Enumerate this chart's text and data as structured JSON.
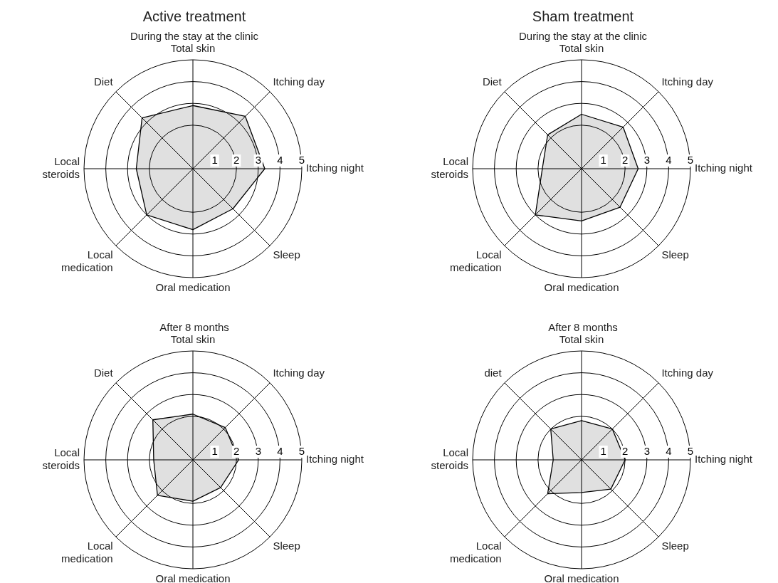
{
  "chart_data": [
    {
      "type": "radar",
      "title": "Active treatment",
      "subtitle": "During the stay at the clinic",
      "categories": [
        "Total skin",
        "Itching day",
        "Itching night",
        "Sleep",
        "Oral medication",
        "Local medication",
        "Local steroids",
        "Diet"
      ],
      "series": [
        {
          "color": "#000000",
          "values": [
            2.9,
            3.4,
            3.3,
            2.6,
            2.8,
            3.0,
            2.6,
            3.3
          ]
        }
      ],
      "ylim": [
        0,
        5
      ],
      "yticks": [
        1,
        2,
        3,
        4,
        5
      ],
      "grid": true,
      "legend": false
    },
    {
      "type": "radar",
      "title": "Sham treatment",
      "subtitle": "During the stay at the clinic",
      "categories": [
        "Total skin",
        "Itching day",
        "Itching night",
        "Sleep",
        "Oral medication",
        "Local medication",
        "Local steroids",
        "Diet"
      ],
      "series": [
        {
          "color": "#000000",
          "values": [
            2.5,
            2.7,
            2.6,
            2.5,
            2.4,
            3.0,
            1.8,
            2.2
          ]
        }
      ],
      "ylim": [
        0,
        5
      ],
      "yticks": [
        1,
        2,
        3,
        4,
        5
      ],
      "grid": true,
      "legend": false
    },
    {
      "type": "radar",
      "subtitle": "After 8 months",
      "categories": [
        "Total skin",
        "Itching day",
        "Itching night",
        "Sleep",
        "Oral medication",
        "Local medication",
        "Local steroids",
        "Diet"
      ],
      "series": [
        {
          "color": "#000000",
          "values": [
            2.1,
            2.1,
            2.1,
            1.8,
            1.9,
            2.3,
            1.8,
            2.6
          ]
        }
      ],
      "ylim": [
        0,
        5
      ],
      "yticks": [
        1,
        2,
        3,
        4,
        5
      ],
      "grid": true,
      "legend": false
    },
    {
      "type": "radar",
      "subtitle": "After 8 months",
      "categories": [
        "Total skin",
        "Itching day",
        "Itching night",
        "Sleep",
        "Oral medication",
        "Local medication",
        "Local steroids",
        "diet"
      ],
      "series": [
        {
          "color": "#000000",
          "values": [
            1.8,
            2.0,
            2.0,
            1.9,
            1.5,
            2.2,
            1.3,
            2.0
          ]
        }
      ],
      "ylim": [
        0,
        5
      ],
      "yticks": [
        1,
        2,
        3,
        4,
        5
      ],
      "grid": true,
      "legend": false
    }
  ]
}
